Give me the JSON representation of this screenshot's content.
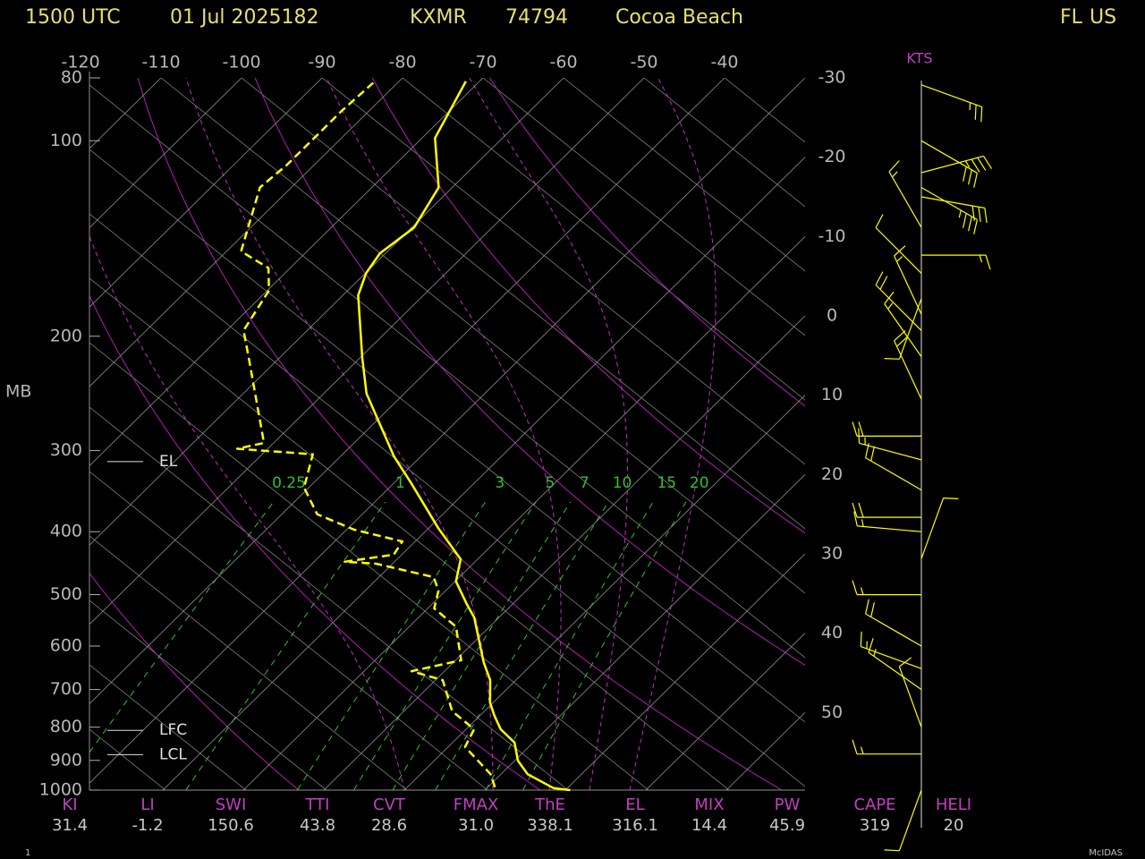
{
  "header": {
    "time": "1500 UTC",
    "date": "01 Jul 2025182",
    "station": "KXMR",
    "station_id": "74794",
    "place": "Cocoa Beach",
    "state": "FL",
    "country": "US"
  },
  "chart_data": {
    "type": "skew-t",
    "ylabel": "MB",
    "log_y": true,
    "ylim": [
      80,
      1000
    ],
    "yticks": [
      80,
      100,
      200,
      300,
      400,
      500,
      600,
      700,
      800,
      900,
      1000
    ],
    "xlim": [
      -118.9,
      -30
    ],
    "xticks": [
      -120,
      -110,
      -100,
      -90,
      -80,
      -70,
      -60,
      -50,
      -40
    ],
    "y2ticks": [
      -30,
      -20,
      -10,
      0,
      10,
      20,
      30,
      40,
      50
    ],
    "series": [
      {
        "color": "#ffff00",
        "style": "solid",
        "pressure": [
          1000,
          993,
          945,
          901,
          845,
          806,
          768,
          733,
          677,
          635,
          542,
          517,
          477,
          441,
          395,
          337,
          306,
          245,
          216,
          173,
          160,
          149,
          136,
          118,
          99,
          81
        ],
        "values": [
          30.6,
          28.3,
          23.3,
          20.4,
          17.7,
          14.3,
          11.8,
          9.6,
          6.8,
          3.7,
          -3.1,
          -5.7,
          -9.9,
          -12.1,
          -18.8,
          -27.8,
          -33.4,
          -44.7,
          -49.7,
          -58.1,
          -59.9,
          -60.7,
          -59.7,
          -61.7,
          -68.4,
          -71.7
        ]
      },
      {
        "color": "#ffff00",
        "style": "dashed",
        "pressure": [
          990,
          945,
          858,
          806,
          756,
          677,
          656,
          631,
          560,
          525,
          493,
          470,
          448,
          445,
          434,
          414,
          397,
          376,
          342,
          304,
          298,
          292,
          216,
          196,
          170,
          157,
          148,
          118,
          109,
          99,
          90,
          81
        ],
        "values": [
          20.9,
          18.7,
          12.1,
          11.0,
          6.0,
          0.9,
          -4.1,
          0.7,
          -4.2,
          -9.2,
          -10.9,
          -13.2,
          -22.1,
          -26.2,
          -21,
          -21.6,
          -29.1,
          -35.6,
          -40.6,
          -43.7,
          -53.8,
          -51.2,
          -63.8,
          -67.9,
          -69.8,
          -72.7,
          -78.2,
          -83.9,
          -83.4,
          -83.4,
          -83.4,
          -83
        ]
      }
    ],
    "mixing_ratio": {
      "color": "#30c030",
      "values": [
        0.25,
        1,
        3,
        5,
        7,
        10,
        15,
        20
      ]
    },
    "levels": [
      {
        "label": "EL",
        "pressure": 312
      },
      {
        "label": "LFC",
        "pressure": 809
      },
      {
        "label": "LCL",
        "pressure": 882
      }
    ],
    "wind": {
      "label": "KTS",
      "color": "#ffff00",
      "pressure": [
        82,
        100,
        112,
        118,
        122,
        136,
        150,
        160,
        175,
        185,
        196,
        215,
        250,
        285,
        310,
        345,
        380,
        400,
        440,
        500,
        600,
        650,
        700,
        800,
        880,
        1000
      ],
      "direction": [
        110,
        120,
        75,
        120,
        100,
        330,
        90,
        315,
        200,
        335,
        315,
        325,
        335,
        270,
        285,
        300,
        270,
        275,
        20,
        270,
        300,
        290,
        305,
        340,
        270,
        200
      ],
      "speed": [
        25,
        30,
        35,
        35,
        30,
        15,
        15,
        10,
        10,
        15,
        20,
        15,
        20,
        20,
        15,
        20,
        20,
        15,
        10,
        15,
        20,
        15,
        15,
        10,
        15,
        10
      ]
    }
  },
  "indices": [
    {
      "name": "KI",
      "value": "31.4"
    },
    {
      "name": "LI",
      "value": "-1.2"
    },
    {
      "name": "SWI",
      "value": "150.6"
    },
    {
      "name": "TTI",
      "value": "43.8"
    },
    {
      "name": "CVT",
      "value": "28.6"
    },
    {
      "name": "FMAX",
      "value": "31.0"
    },
    {
      "name": "ThE",
      "value": "338.1"
    },
    {
      "name": "EL",
      "value": "316.1"
    },
    {
      "name": "MIX",
      "value": "14.4"
    },
    {
      "name": "PW",
      "value": "45.9"
    },
    {
      "name": "CAPE",
      "value": "319"
    },
    {
      "name": "HELI",
      "value": "20"
    }
  ],
  "footer": {
    "left": "1",
    "right": "McIDAS"
  }
}
